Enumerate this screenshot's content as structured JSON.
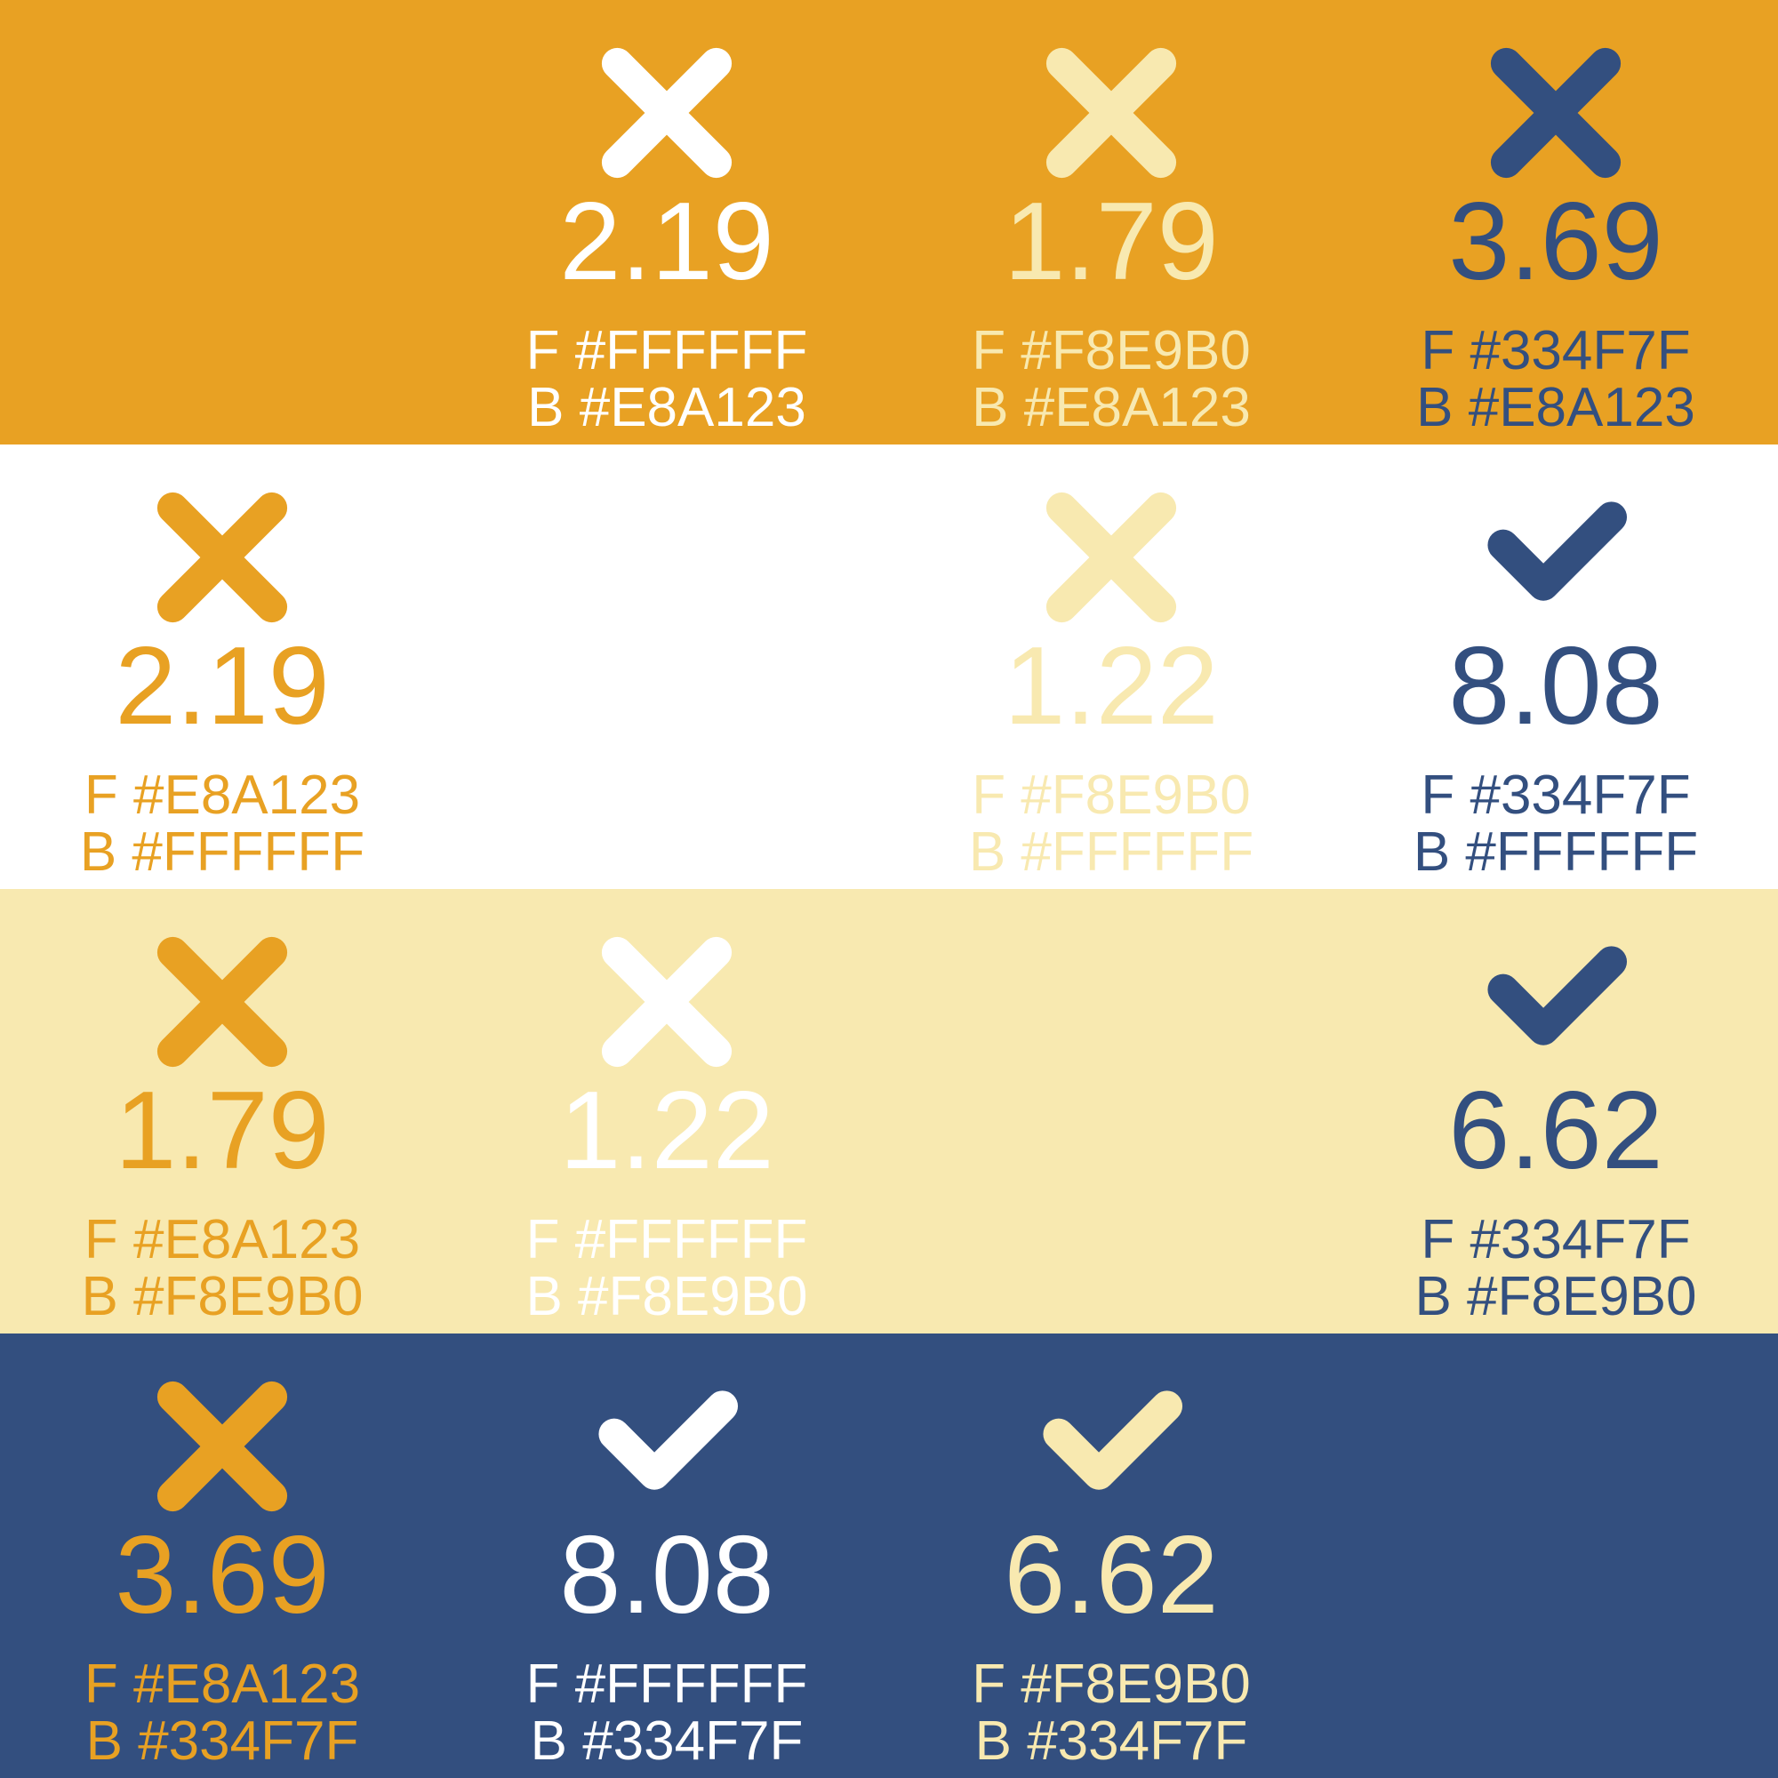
{
  "colors": [
    "#E8A123",
    "#FFFFFF",
    "#F8E9B0",
    "#334F7F"
  ],
  "rows": [
    {
      "background": "#E8A123",
      "cells": [
        null,
        {
          "icon": "cross-icon",
          "ratio": "2.19",
          "fg_label": "F #FFFFFF",
          "bg_label": "B #E8A123",
          "color": "#FFFFFF"
        },
        {
          "icon": "cross-icon",
          "ratio": "1.79",
          "fg_label": "F #F8E9B0",
          "bg_label": "B #E8A123",
          "color": "#F8E9B0"
        },
        {
          "icon": "cross-icon",
          "ratio": "3.69",
          "fg_label": "F #334F7F",
          "bg_label": "B #E8A123",
          "color": "#334F7F"
        }
      ]
    },
    {
      "background": "#FFFFFF",
      "cells": [
        {
          "icon": "cross-icon",
          "ratio": "2.19",
          "fg_label": "F #E8A123",
          "bg_label": "B #FFFFFF",
          "color": "#E8A123"
        },
        null,
        {
          "icon": "cross-icon",
          "ratio": "1.22",
          "fg_label": "F #F8E9B0",
          "bg_label": "B #FFFFFF",
          "color": "#F8E9B0"
        },
        {
          "icon": "check-icon",
          "ratio": "8.08",
          "fg_label": "F #334F7F",
          "bg_label": "B #FFFFFF",
          "color": "#334F7F"
        }
      ]
    },
    {
      "background": "#F8E9B0",
      "cells": [
        {
          "icon": "cross-icon",
          "ratio": "1.79",
          "fg_label": "F #E8A123",
          "bg_label": "B #F8E9B0",
          "color": "#E8A123"
        },
        {
          "icon": "cross-icon",
          "ratio": "1.22",
          "fg_label": "F #FFFFFF",
          "bg_label": "B #F8E9B0",
          "color": "#FFFFFF"
        },
        null,
        {
          "icon": "check-icon",
          "ratio": "6.62",
          "fg_label": "F #334F7F",
          "bg_label": "B #F8E9B0",
          "color": "#334F7F"
        }
      ]
    },
    {
      "background": "#334F7F",
      "cells": [
        {
          "icon": "cross-icon",
          "ratio": "3.69",
          "fg_label": "F #E8A123",
          "bg_label": "B #334F7F",
          "color": "#E8A123"
        },
        {
          "icon": "check-icon",
          "ratio": "8.08",
          "fg_label": "F #FFFFFF",
          "bg_label": "B #334F7F",
          "color": "#FFFFFF"
        },
        {
          "icon": "check-icon",
          "ratio": "6.62",
          "fg_label": "F #F8E9B0",
          "bg_label": "B #334F7F",
          "color": "#F8E9B0"
        },
        null
      ]
    }
  ]
}
